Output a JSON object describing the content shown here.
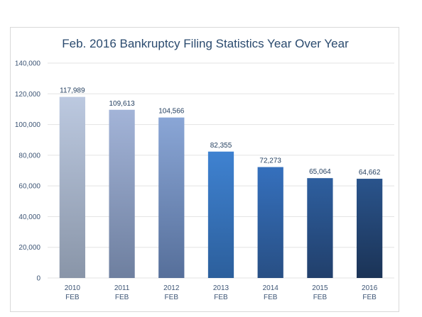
{
  "chart_data": {
    "type": "bar",
    "title": "Feb. 2016 Bankruptcy Filing Statistics Year Over Year",
    "categories": [
      [
        "2010",
        "FEB"
      ],
      [
        "2011",
        "FEB"
      ],
      [
        "2012",
        "FEB"
      ],
      [
        "2013",
        "FEB"
      ],
      [
        "2014",
        "FEB"
      ],
      [
        "2015",
        "FEB"
      ],
      [
        "2016",
        "FEB"
      ]
    ],
    "values": [
      117989,
      109613,
      104566,
      82355,
      72273,
      65064,
      64662
    ],
    "data_labels": [
      "117,989",
      "109,613",
      "104,566",
      "82,355",
      "72,273",
      "65,064",
      "64,662"
    ],
    "yticks": [
      0,
      20000,
      40000,
      60000,
      80000,
      100000,
      120000,
      140000
    ],
    "ytick_labels": [
      "0",
      "20,000",
      "40,000",
      "60,000",
      "80,000",
      "100,000",
      "120,000",
      "140,000"
    ],
    "ylim": [
      0,
      140000
    ],
    "grid": true,
    "legend": "none",
    "bar_colors": [
      [
        "#bcc9e0",
        "#8995a8"
      ],
      [
        "#a3b4d8",
        "#6e7f9f"
      ],
      [
        "#8aa6d6",
        "#566f9a"
      ],
      [
        "#3f82d1",
        "#2c5f9c"
      ],
      [
        "#3570bd",
        "#284f84"
      ],
      [
        "#2e5f9f",
        "#213f6b"
      ],
      [
        "#2a548c",
        "#1b3356"
      ]
    ]
  }
}
